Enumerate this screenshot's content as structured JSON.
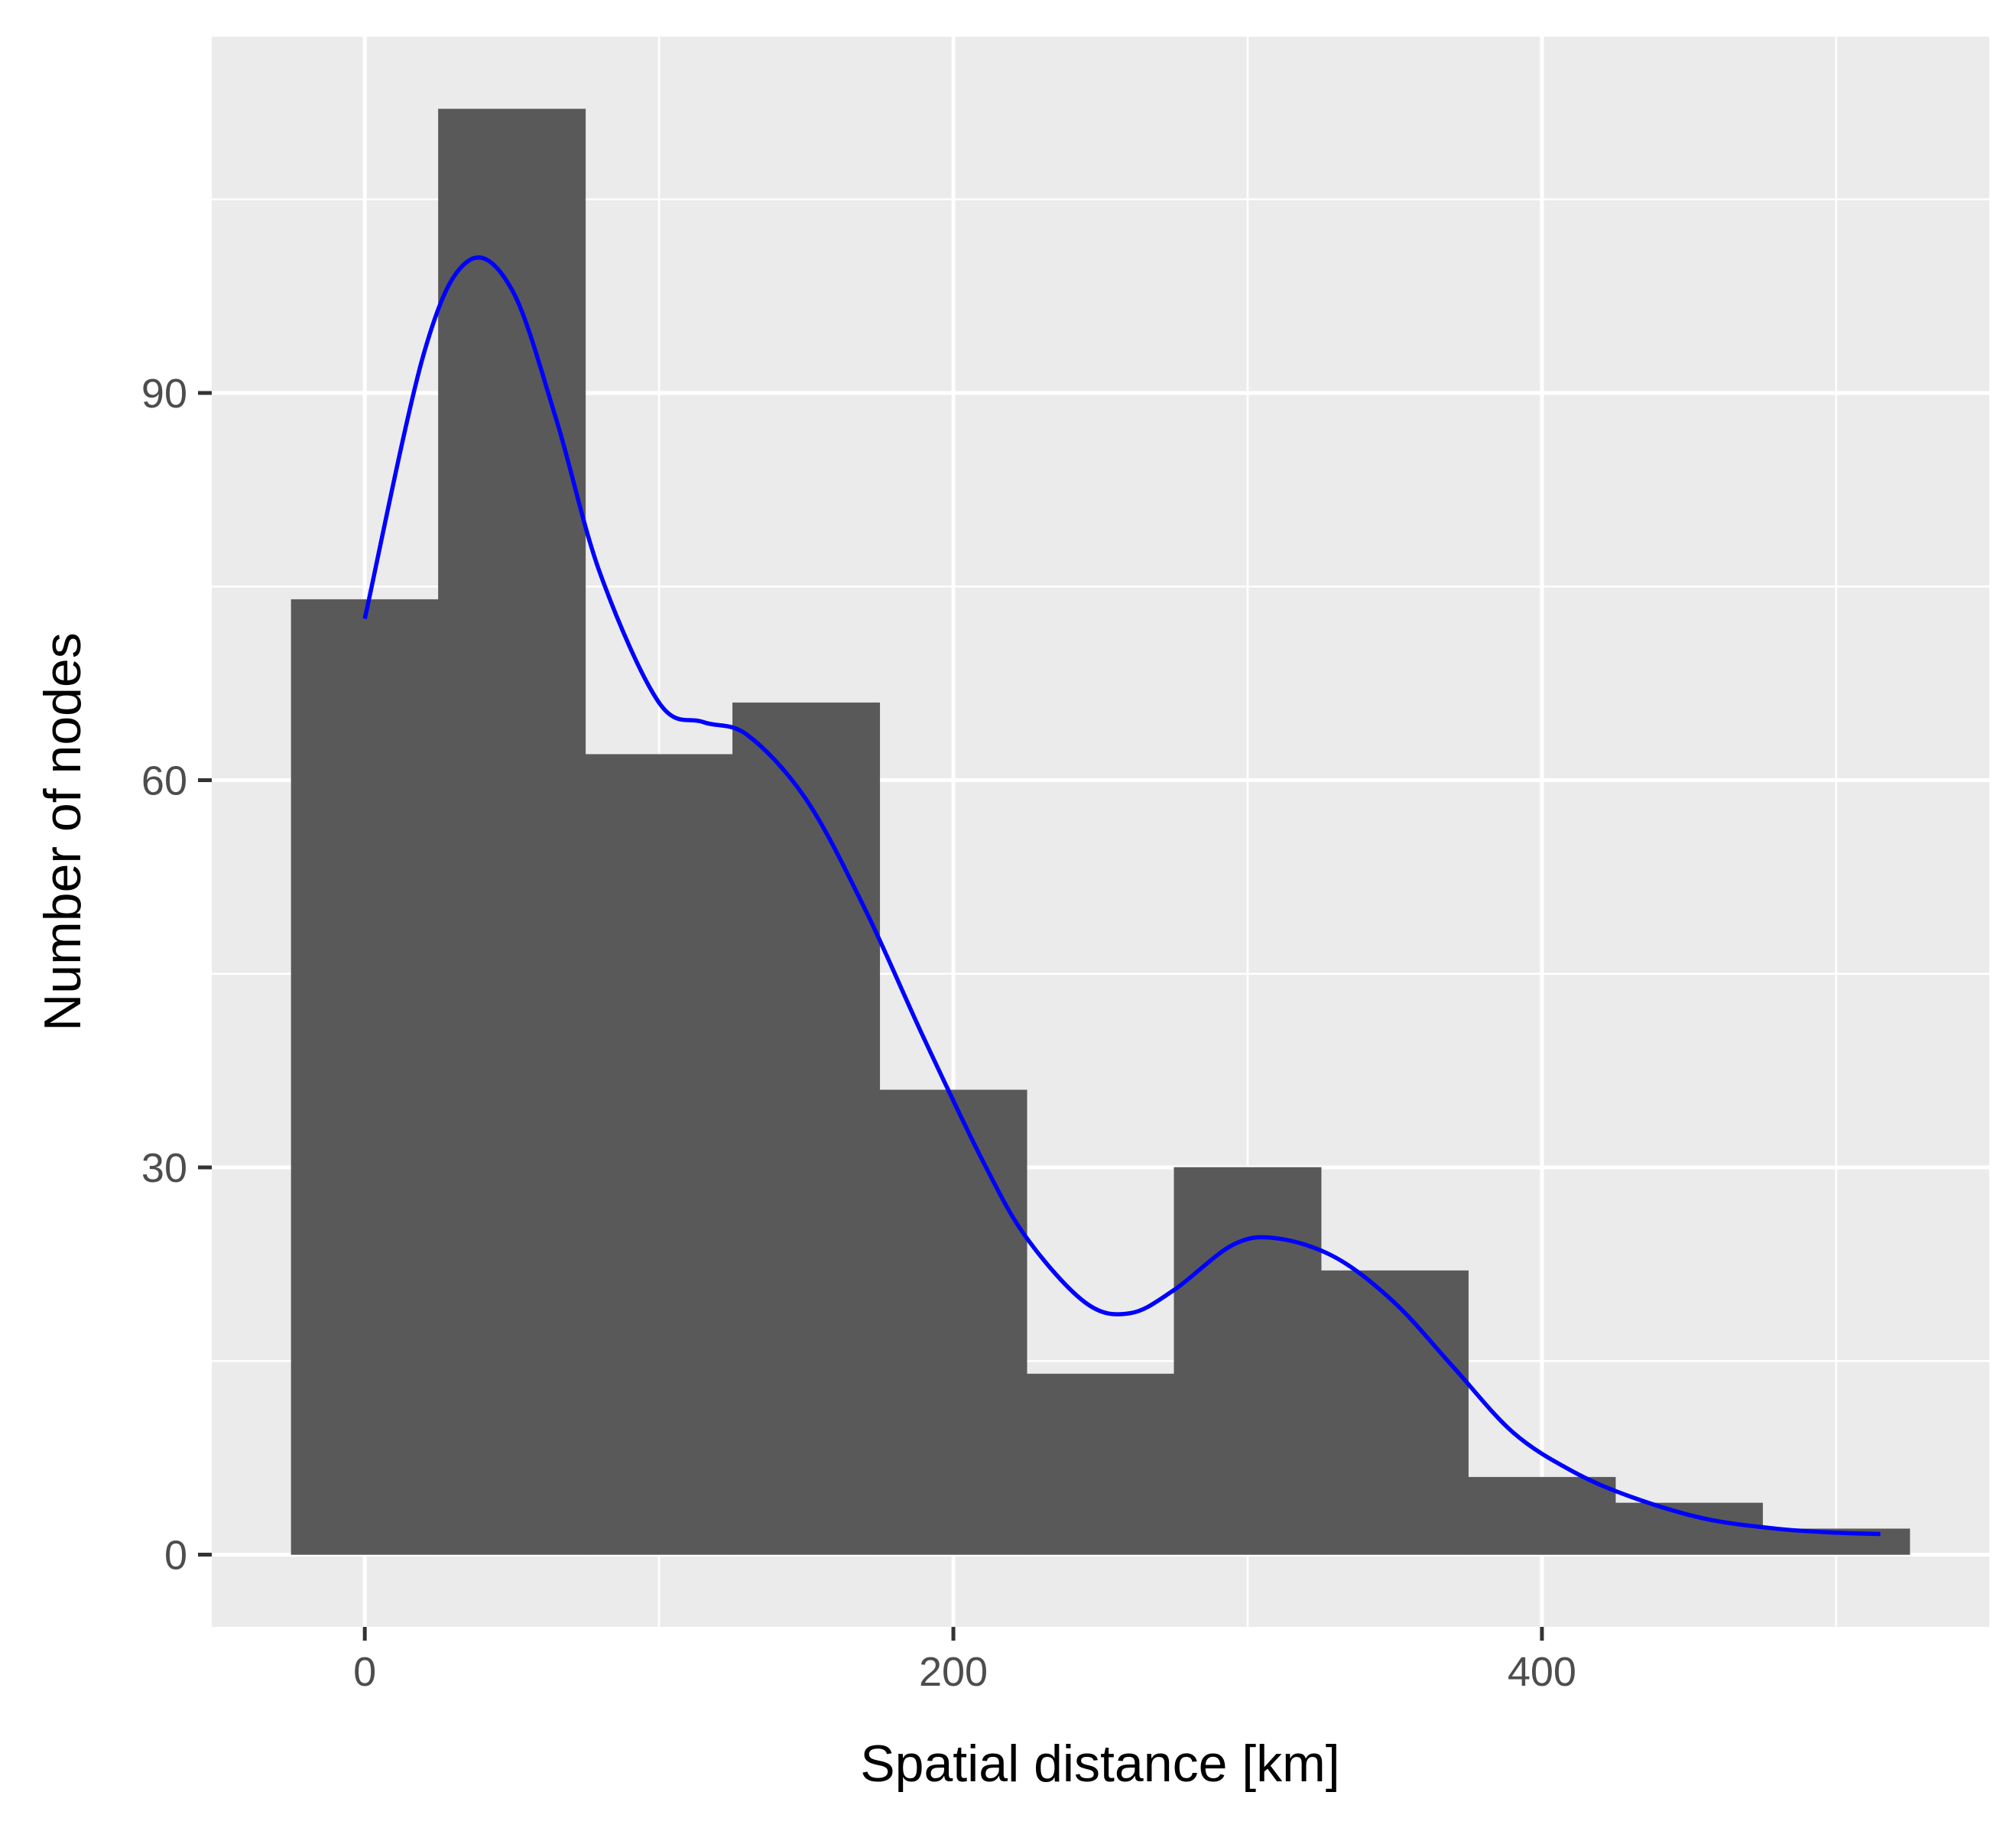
{
  "chart_data": {
    "type": "bar",
    "xlabel": "Spatial distance [km]",
    "ylabel": "Number of nodes",
    "bin_width": 50,
    "bin_centers": [
      0,
      50,
      100,
      150,
      200,
      250,
      300,
      350,
      400,
      450,
      500
    ],
    "values": [
      74,
      112,
      62,
      66,
      36,
      14,
      30,
      22,
      6,
      4,
      2
    ],
    "density_curve": {
      "x": [
        0,
        20,
        35,
        50,
        65,
        80,
        100,
        115,
        130,
        150,
        170,
        190,
        210,
        225,
        245,
        260,
        275,
        295,
        310,
        330,
        350,
        370,
        390,
        410,
        430,
        455,
        480,
        500,
        515
      ],
      "y": [
        72.5,
        93,
        100.2,
        98,
        88,
        76,
        66,
        64.5,
        63.5,
        58.5,
        50,
        40,
        30.5,
        24.5,
        19.5,
        18.7,
        20.5,
        24,
        24.5,
        23,
        19.5,
        14.5,
        9.5,
        6.5,
        4.5,
        2.8,
        2.0,
        1.7,
        1.6
      ],
      "color": "#0000ff"
    },
    "xlim": [
      -52,
      552
    ],
    "ylim": [
      -5.6,
      117.6
    ],
    "x_ticks": [
      0,
      200,
      400
    ],
    "y_ticks": [
      0,
      30,
      60,
      90
    ],
    "bar_color": "#595959",
    "panel_background": "#ebebeb",
    "grid": true
  }
}
